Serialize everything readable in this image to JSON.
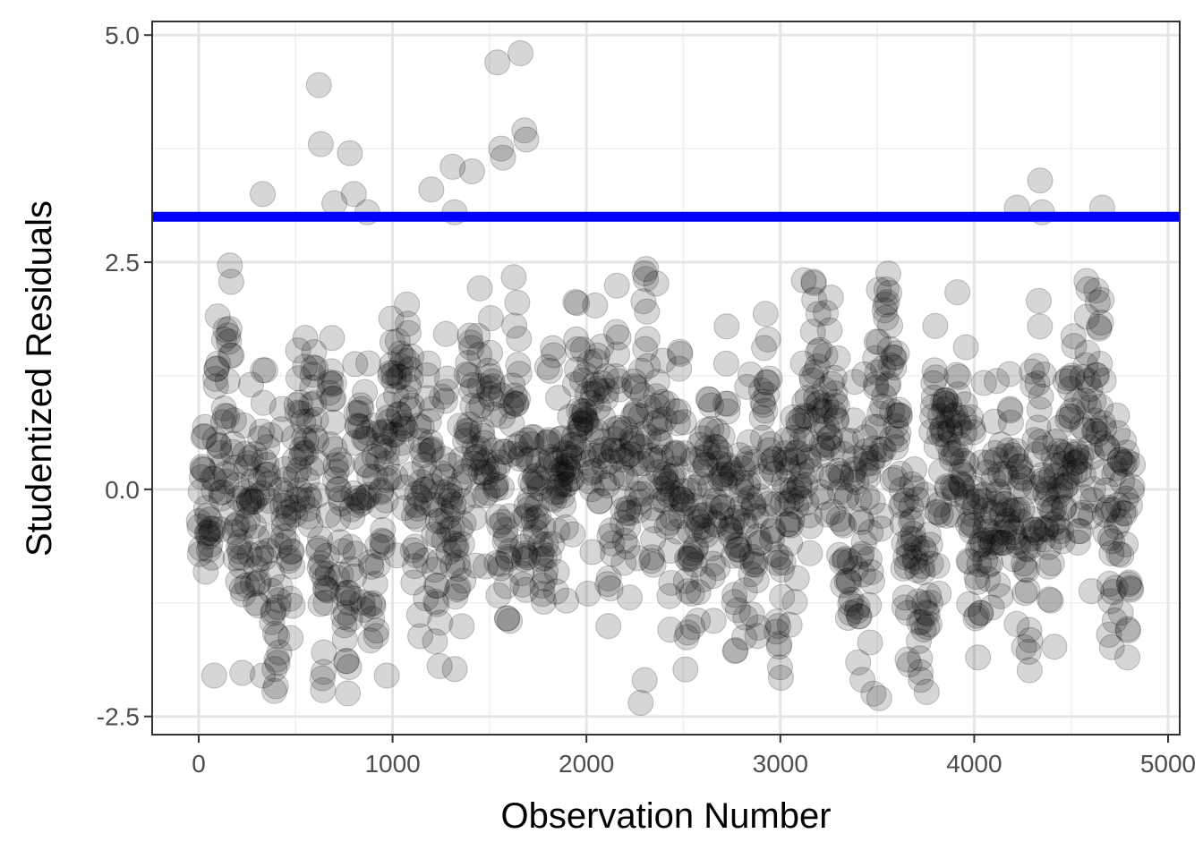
{
  "chart_data": {
    "type": "scatter",
    "title": "",
    "xlabel": "Observation Number",
    "ylabel": "Studentized Residuals",
    "xlim": [
      -240,
      5060
    ],
    "ylim": [
      -2.7,
      5.15
    ],
    "x_ticks": [
      0,
      1000,
      2000,
      3000,
      4000,
      5000
    ],
    "x_tick_labels": [
      "0",
      "1000",
      "2000",
      "3000",
      "4000",
      "5000"
    ],
    "y_ticks": [
      -2.5,
      0.0,
      2.5,
      5.0
    ],
    "y_tick_labels": [
      "-2.5",
      "0.0",
      "2.5",
      "5.0"
    ],
    "grid": true,
    "n_points": 4820,
    "point_color": "#000000",
    "point_alpha": 0.16,
    "reference_line": {
      "y": 3,
      "color": "#0000ff"
    },
    "outliers": [
      {
        "x": 620,
        "y": 4.45
      },
      {
        "x": 630,
        "y": 3.8
      },
      {
        "x": 330,
        "y": 3.25
      },
      {
        "x": 700,
        "y": 3.15
      },
      {
        "x": 800,
        "y": 3.25
      },
      {
        "x": 780,
        "y": 3.7
      },
      {
        "x": 870,
        "y": 3.05
      },
      {
        "x": 1200,
        "y": 3.3
      },
      {
        "x": 1310,
        "y": 3.55
      },
      {
        "x": 1410,
        "y": 3.5
      },
      {
        "x": 1540,
        "y": 4.7
      },
      {
        "x": 1560,
        "y": 3.75
      },
      {
        "x": 1570,
        "y": 3.65
      },
      {
        "x": 1660,
        "y": 4.8
      },
      {
        "x": 1680,
        "y": 3.95
      },
      {
        "x": 1690,
        "y": 3.85
      },
      {
        "x": 1320,
        "y": 3.05
      },
      {
        "x": 4220,
        "y": 3.1
      },
      {
        "x": 4340,
        "y": 3.4
      },
      {
        "x": 4350,
        "y": 3.05
      },
      {
        "x": 4660,
        "y": 3.1
      }
    ],
    "lows": [
      {
        "x": 80,
        "y": -2.05
      },
      {
        "x": 330,
        "y": -2.05
      },
      {
        "x": 970,
        "y": -2.05
      },
      {
        "x": 2280,
        "y": -2.35
      },
      {
        "x": 2300,
        "y": -2.1
      },
      {
        "x": 3480,
        "y": -2.25
      },
      {
        "x": 3510,
        "y": -2.3
      },
      {
        "x": 4790,
        "y": -1.85
      },
      {
        "x": 4020,
        "y": -1.85
      }
    ]
  }
}
